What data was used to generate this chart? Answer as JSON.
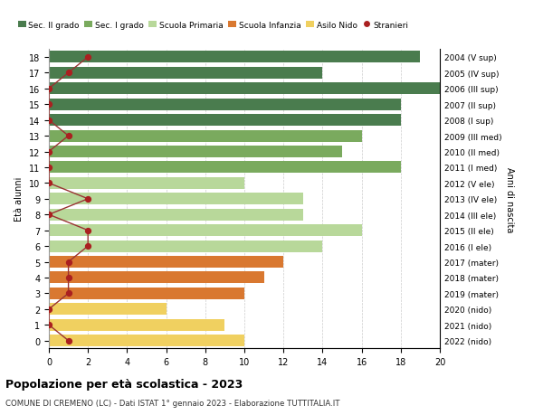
{
  "ages": [
    18,
    17,
    16,
    15,
    14,
    13,
    12,
    11,
    10,
    9,
    8,
    7,
    6,
    5,
    4,
    3,
    2,
    1,
    0
  ],
  "right_labels": [
    "2004 (V sup)",
    "2005 (IV sup)",
    "2006 (III sup)",
    "2007 (II sup)",
    "2008 (I sup)",
    "2009 (III med)",
    "2010 (II med)",
    "2011 (I med)",
    "2012 (V ele)",
    "2013 (IV ele)",
    "2014 (III ele)",
    "2015 (II ele)",
    "2016 (I ele)",
    "2017 (mater)",
    "2018 (mater)",
    "2019 (mater)",
    "2020 (nido)",
    "2021 (nido)",
    "2022 (nido)"
  ],
  "bar_values": [
    19,
    14,
    20,
    18,
    18,
    16,
    15,
    18,
    10,
    13,
    13,
    16,
    14,
    12,
    11,
    10,
    6,
    9,
    10
  ],
  "bar_colors": [
    "#4a7c4e",
    "#4a7c4e",
    "#4a7c4e",
    "#4a7c4e",
    "#4a7c4e",
    "#7aaa5e",
    "#7aaa5e",
    "#7aaa5e",
    "#b8d89a",
    "#b8d89a",
    "#b8d89a",
    "#b8d89a",
    "#b8d89a",
    "#d97830",
    "#d97830",
    "#d97830",
    "#f0d060",
    "#f0d060",
    "#f0d060"
  ],
  "stranieri_x": [
    2,
    1,
    0,
    0,
    0,
    1,
    0,
    0,
    0,
    2,
    0,
    2,
    2,
    1,
    1,
    1,
    0,
    0,
    1
  ],
  "title_bold": "Popolazione per età scolastica - 2023",
  "subtitle": "COMUNE DI CREMENO (LC) - Dati ISTAT 1° gennaio 2023 - Elaborazione TUTTITALIA.IT",
  "ylabel": "Età alunni",
  "right_ylabel": "Anni di nascita",
  "xlim": [
    0,
    20
  ],
  "xticks": [
    0,
    2,
    4,
    6,
    8,
    10,
    12,
    14,
    16,
    18,
    20
  ],
  "legend_labels": [
    "Sec. II grado",
    "Sec. I grado",
    "Scuola Primaria",
    "Scuola Infanzia",
    "Asilo Nido",
    "Stranieri"
  ],
  "legend_colors": [
    "#4a7c4e",
    "#7aaa5e",
    "#b8d89a",
    "#d97830",
    "#f0d060",
    "#aa2020"
  ],
  "bar_height": 0.75,
  "grid_color": "#cccccc",
  "bg_color": "#ffffff",
  "stranieri_color": "#aa2020",
  "stranieri_line_color": "#993333"
}
